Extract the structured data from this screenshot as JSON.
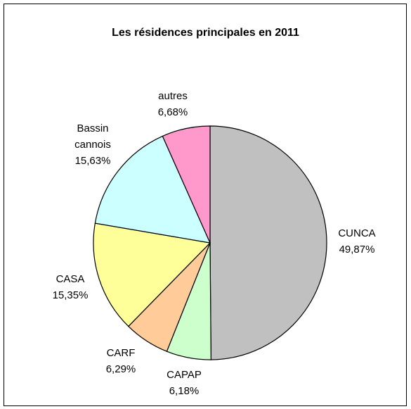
{
  "chart_data": {
    "type": "pie",
    "title": "Les résidences principales en 2011",
    "categories": [
      "CUNCA",
      "CAPAP",
      "CARF",
      "CASA",
      "Bassin cannois",
      "autres"
    ],
    "values": [
      49.87,
      6.18,
      6.29,
      15.35,
      15.63,
      6.68
    ],
    "value_labels": [
      "49,87%",
      "6,18%",
      "6,29%",
      "15,35%",
      "15,63%",
      "6,68%"
    ],
    "colors": [
      "#c0c0c0",
      "#ccffcc",
      "#ffcc99",
      "#ffff99",
      "#ccffff",
      "#ff99cc"
    ]
  }
}
